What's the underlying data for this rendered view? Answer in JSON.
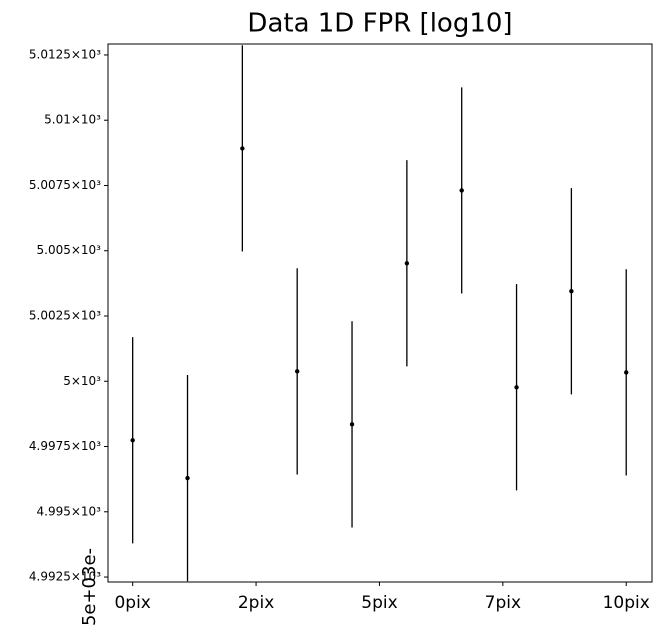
{
  "chart_data": {
    "type": "errorbar",
    "title": "Data 1D FPR [log10]",
    "ylabel": "5e+03e-",
    "x": [
      0,
      1,
      2,
      3,
      4,
      5,
      6,
      7,
      8,
      9
    ],
    "values": [
      4997.74,
      4996.29,
      5008.92,
      5000.38,
      4998.35,
      5004.52,
      5007.31,
      4999.77,
      5003.45,
      5000.34
    ],
    "errors": [
      3.95,
      3.95,
      3.95,
      3.95,
      3.95,
      3.95,
      3.95,
      3.95,
      3.95,
      3.95
    ],
    "color": "#000000",
    "xlim": [
      -0.45,
      9.47
    ],
    "xticks": [
      {
        "value": 0,
        "label": "0pix"
      },
      {
        "value": 2.25,
        "label": "2pix"
      },
      {
        "value": 4.5,
        "label": "5pix"
      },
      {
        "value": 6.75,
        "label": "7pix"
      },
      {
        "value": 9,
        "label": "10pix"
      }
    ],
    "ylim": [
      4992.31,
      5012.92
    ],
    "yticks": [
      {
        "value": 4992.5,
        "label": "4.9925×10³"
      },
      {
        "value": 4995,
        "label": "4.995×10³"
      },
      {
        "value": 4997.5,
        "label": "4.9975×10³"
      },
      {
        "value": 5000,
        "label": "5×10³"
      },
      {
        "value": 5002.5,
        "label": "5.0025×10³"
      },
      {
        "value": 5005,
        "label": "5.005×10³"
      },
      {
        "value": 5007.5,
        "label": "5.0075×10³"
      },
      {
        "value": 5010,
        "label": "5.01×10³"
      },
      {
        "value": 5012.5,
        "label": "5.0125×10³"
      }
    ]
  }
}
